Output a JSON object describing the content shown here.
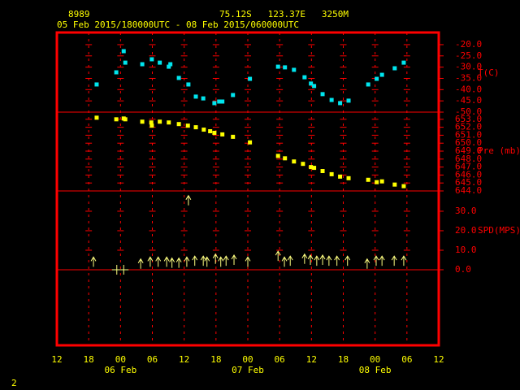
{
  "header": {
    "station": "8989",
    "location": "75.12S   123.37E   3250M",
    "period": "05 Feb 2015/180000UTC - 08 Feb 2015/060000UTC",
    "page": "2"
  },
  "x_axis": {
    "xlim": [
      0,
      72
    ],
    "xticks": [
      {
        "value": 0,
        "label": "12"
      },
      {
        "value": 6,
        "label": "18"
      },
      {
        "value": 12,
        "label": "00"
      },
      {
        "value": 18,
        "label": "06"
      },
      {
        "value": 24,
        "label": "12"
      },
      {
        "value": 30,
        "label": "18"
      },
      {
        "value": 36,
        "label": "00"
      },
      {
        "value": 42,
        "label": "06"
      },
      {
        "value": 48,
        "label": "12"
      },
      {
        "value": 54,
        "label": "18"
      },
      {
        "value": 60,
        "label": "00"
      },
      {
        "value": 66,
        "label": "06"
      },
      {
        "value": 72,
        "label": "12"
      }
    ],
    "day_labels": [
      {
        "value": 12,
        "label": "06 Feb"
      },
      {
        "value": 36,
        "label": "07 Feb"
      },
      {
        "value": 60,
        "label": "08 Feb"
      }
    ]
  },
  "chart_data": [
    {
      "type": "scatter",
      "label": "T(C)",
      "color": "#00e5ee",
      "ylim": [
        -50,
        -14.6
      ],
      "yticks": [
        {
          "value": -20,
          "label": "-20.0"
        },
        {
          "value": -25,
          "label": "-25.0"
        },
        {
          "value": -30,
          "label": "-30.0"
        },
        {
          "value": -35,
          "label": "-35.0"
        },
        {
          "value": -40,
          "label": "-40.0"
        },
        {
          "value": -45,
          "label": "-45.0"
        },
        {
          "value": -50,
          "label": "-50.0"
        }
      ],
      "x": [
        7.5,
        11.2,
        12.6,
        12.9,
        16.1,
        17.9,
        19.4,
        21.1,
        21.4,
        23.0,
        24.8,
        26.2,
        27.6,
        29.7,
        30.6,
        31.2,
        33.2,
        36.4,
        41.7,
        43.0,
        44.7,
        46.7,
        47.9,
        48.5,
        50.1,
        51.8,
        53.4,
        55.0,
        58.7,
        60.3,
        61.3,
        63.7,
        65.4
      ],
      "values": [
        -37.7,
        -32.3,
        -22.9,
        -28.0,
        -28.7,
        -26.5,
        -28.0,
        -29.8,
        -28.7,
        -34.8,
        -37.7,
        -43.1,
        -43.9,
        -46.0,
        -45.3,
        -45.3,
        -42.4,
        -35.2,
        -29.8,
        -30.1,
        -31.2,
        -34.5,
        -37.3,
        -38.4,
        -42.0,
        -44.6,
        -46.0,
        -44.9,
        -37.7,
        -35.2,
        -33.4,
        -30.5,
        -28.0
      ]
    },
    {
      "type": "scatter",
      "label": "Pre (mb)",
      "color": "#ffff00",
      "ylim": [
        644,
        653.9
      ],
      "yticks": [
        {
          "value": 653,
          "label": "653.0"
        },
        {
          "value": 652,
          "label": "652.0"
        },
        {
          "value": 651,
          "label": "651.0"
        },
        {
          "value": 650,
          "label": "650.0"
        },
        {
          "value": 649,
          "label": "649.0"
        },
        {
          "value": 648,
          "label": "648.0"
        },
        {
          "value": 647,
          "label": "647.0"
        },
        {
          "value": 646,
          "label": "646.0"
        },
        {
          "value": 645,
          "label": "645.0"
        },
        {
          "value": 644,
          "label": "644.0"
        }
      ],
      "x": [
        7.5,
        11.2,
        12.6,
        12.9,
        16.1,
        17.8,
        17.9,
        19.4,
        21.1,
        23.0,
        24.7,
        26.2,
        27.7,
        28.9,
        29.7,
        31.2,
        33.2,
        36.4,
        41.7,
        43.0,
        44.7,
        46.4,
        47.9,
        48.5,
        50.1,
        51.8,
        53.4,
        55.0,
        58.7,
        60.3,
        61.3,
        63.7,
        65.4
      ],
      "values": [
        653.2,
        653.0,
        653.1,
        653.0,
        652.7,
        652.6,
        652.2,
        652.7,
        652.6,
        652.4,
        652.2,
        652.0,
        651.7,
        651.5,
        651.3,
        651.1,
        650.8,
        650.1,
        648.4,
        648.1,
        647.7,
        647.4,
        647.0,
        646.9,
        646.5,
        646.1,
        645.8,
        645.6,
        645.4,
        645.1,
        645.2,
        644.8,
        644.6
      ]
    },
    {
      "type": "wind",
      "label": "SPD(MPS)",
      "color": "#ffff80",
      "ylim": [
        -38.75,
        40.4
      ],
      "yticks": [
        {
          "value": 0,
          "label": "0.0"
        },
        {
          "value": 10,
          "label": "10.0"
        },
        {
          "value": 20,
          "label": "20.0"
        },
        {
          "value": 30,
          "label": "30.0"
        }
      ],
      "x": [
        6.9,
        11.3,
        12.6,
        15.8,
        17.6,
        19.1,
        20.7,
        21.7,
        23.0,
        24.5,
        24.8,
        26.0,
        27.6,
        28.3,
        29.9,
        30.9,
        31.9,
        33.4,
        36.0,
        41.7,
        42.9,
        44.0,
        46.7,
        47.8,
        49.0,
        50.1,
        51.3,
        52.8,
        54.8,
        58.5,
        60.2,
        61.3,
        63.6,
        65.4
      ],
      "values": [
        6.5,
        0,
        0,
        5.5,
        6.5,
        6.5,
        6.5,
        6.0,
        6.0,
        6.5,
        38,
        7.0,
        7.0,
        6.5,
        8.0,
        6.5,
        7.0,
        7.5,
        6.5,
        9.5,
        6.5,
        7.0,
        8.0,
        7.5,
        7.0,
        7.5,
        7.0,
        7.0,
        7.0,
        5.5,
        7.0,
        7.0,
        7.0,
        7.0
      ]
    }
  ]
}
